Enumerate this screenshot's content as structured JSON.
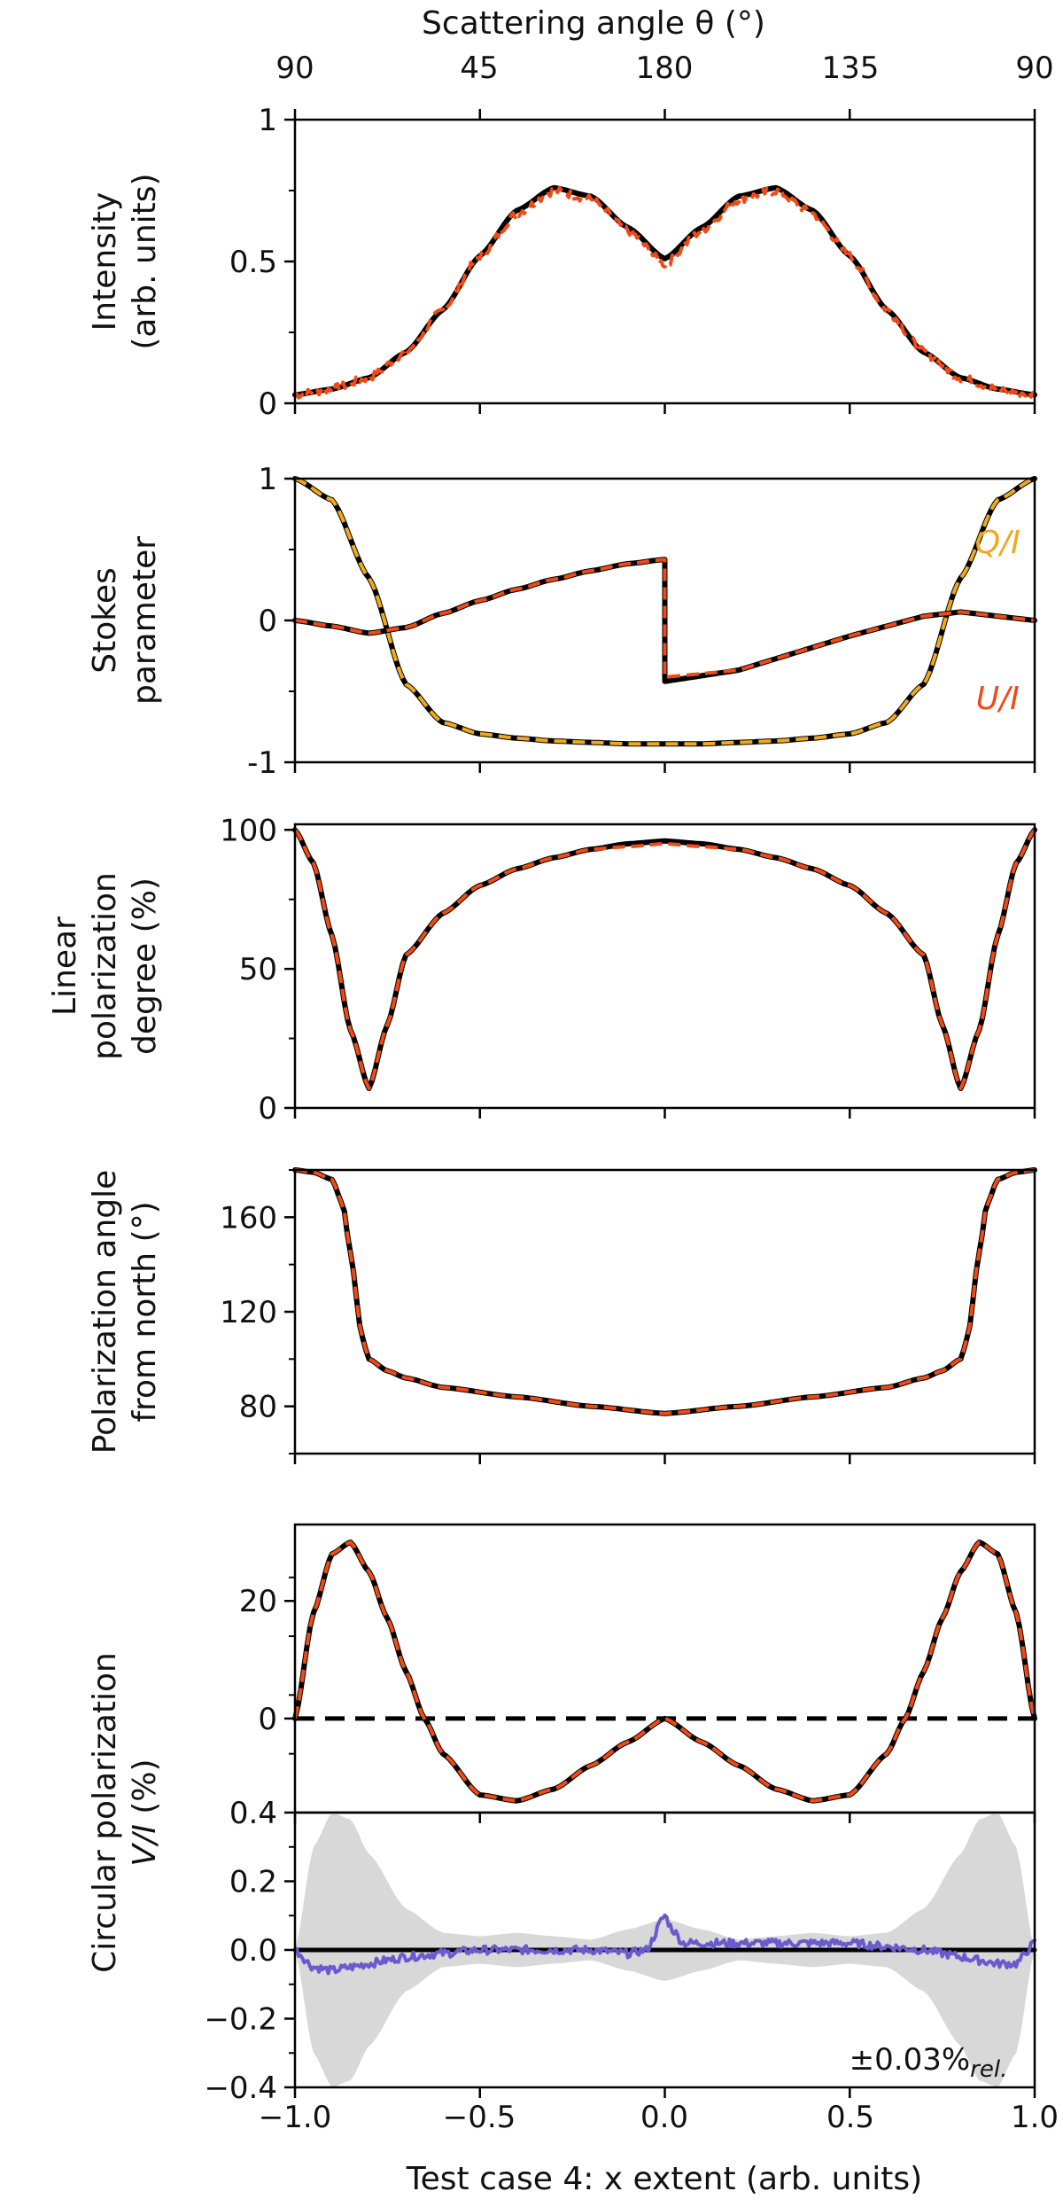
{
  "figure": {
    "top_axis_title": "Scattering angle θ (°)",
    "top_axis_ticks": [
      "90",
      "45",
      "180",
      "135",
      "90"
    ],
    "bottom_axis_title": "Test case 4: x extent (arb. units)",
    "bottom_axis_ticks": [
      "−1.0",
      "−0.5",
      "0.0",
      "0.5",
      "1.0"
    ]
  },
  "colors": {
    "model": "#000000",
    "sim_red": "#f04a16",
    "sim_orange": "#f0a81e",
    "residual": "#6a5acd",
    "band": "#d8d8d8"
  },
  "chart_data": [
    {
      "id": "intensity",
      "type": "line",
      "ylabel_lines": [
        "Intensity",
        "(arb. units)"
      ],
      "ylim": [
        0,
        1
      ],
      "yticks": [
        0,
        0.5,
        1
      ],
      "ytick_labels": [
        "0",
        "0.5",
        "1"
      ],
      "x": [
        -1.0,
        -0.9,
        -0.8,
        -0.7,
        -0.6,
        -0.5,
        -0.4,
        -0.3,
        -0.2,
        -0.1,
        0.0,
        0.1,
        0.2,
        0.3,
        0.4,
        0.5,
        0.6,
        0.7,
        0.8,
        0.9,
        1.0
      ],
      "series": [
        {
          "name": "model",
          "color": "#000000",
          "style": "solid",
          "values": [
            0.03,
            0.05,
            0.09,
            0.18,
            0.33,
            0.52,
            0.68,
            0.76,
            0.73,
            0.62,
            0.51,
            0.62,
            0.73,
            0.76,
            0.68,
            0.52,
            0.33,
            0.18,
            0.09,
            0.05,
            0.03
          ]
        },
        {
          "name": "simulation",
          "color": "#f04a16",
          "style": "dashed",
          "noise": 0.015,
          "values": [
            0.03,
            0.05,
            0.09,
            0.18,
            0.33,
            0.52,
            0.67,
            0.75,
            0.72,
            0.61,
            0.49,
            0.61,
            0.72,
            0.75,
            0.67,
            0.52,
            0.33,
            0.18,
            0.09,
            0.05,
            0.03
          ]
        }
      ]
    },
    {
      "id": "stokes",
      "type": "line",
      "ylabel_lines": [
        "Stokes",
        "parameter"
      ],
      "ylim": [
        -1,
        1
      ],
      "yticks": [
        -1,
        0,
        1
      ],
      "ytick_labels": [
        "-1",
        "0",
        "1"
      ],
      "annotations": [
        {
          "text": "Q/I",
          "color": "#f0a81e",
          "x": 0.9,
          "y": 0.55
        },
        {
          "text": "U/I",
          "color": "#f04a16",
          "x": 0.9,
          "y": -0.55
        }
      ],
      "x": [
        -1.0,
        -0.9,
        -0.8,
        -0.7,
        -0.6,
        -0.5,
        -0.4,
        -0.3,
        -0.2,
        -0.1,
        0.0,
        0.1,
        0.2,
        0.3,
        0.4,
        0.5,
        0.6,
        0.7,
        0.8,
        0.9,
        1.0
      ],
      "series": [
        {
          "name": "Q/I model",
          "color": "#000000",
          "style": "solid",
          "values": [
            1.0,
            0.85,
            0.3,
            -0.45,
            -0.72,
            -0.8,
            -0.83,
            -0.85,
            -0.86,
            -0.87,
            -0.87,
            -0.87,
            -0.86,
            -0.85,
            -0.83,
            -0.8,
            -0.72,
            -0.45,
            0.3,
            0.85,
            1.0
          ]
        },
        {
          "name": "Q/I",
          "color": "#f0a81e",
          "style": "dashed",
          "values": [
            1.0,
            0.85,
            0.3,
            -0.45,
            -0.72,
            -0.8,
            -0.83,
            -0.85,
            -0.86,
            -0.87,
            -0.87,
            -0.87,
            -0.86,
            -0.85,
            -0.83,
            -0.8,
            -0.72,
            -0.45,
            0.3,
            0.85,
            1.0
          ]
        },
        {
          "name": "U/I model",
          "color": "#000000",
          "style": "solid",
          "values": [
            0.0,
            -0.04,
            -0.09,
            -0.05,
            0.05,
            0.14,
            0.22,
            0.29,
            0.35,
            0.4,
            0.43,
            -0.43,
            -0.35,
            -0.27,
            -0.19,
            -0.11,
            -0.04,
            0.03,
            0.06,
            0.03,
            0.0
          ]
        },
        {
          "name": "U/I",
          "color": "#f04a16",
          "style": "dashed",
          "values": [
            0.0,
            -0.04,
            -0.09,
            -0.05,
            0.05,
            0.14,
            0.22,
            0.29,
            0.35,
            0.4,
            0.43,
            -0.4,
            -0.35,
            -0.27,
            -0.19,
            -0.11,
            -0.04,
            0.03,
            0.06,
            0.03,
            0.0
          ]
        }
      ]
    },
    {
      "id": "linear_pol",
      "type": "line",
      "ylabel_lines": [
        "Linear",
        "polarization",
        "degree (%)"
      ],
      "ylim": [
        0,
        102
      ],
      "yticks": [
        0,
        50,
        100
      ],
      "ytick_labels": [
        "0",
        "50",
        "100"
      ],
      "x": [
        -1.0,
        -0.95,
        -0.9,
        -0.85,
        -0.8,
        -0.75,
        -0.7,
        -0.6,
        -0.5,
        -0.4,
        -0.3,
        -0.2,
        -0.1,
        0.0,
        0.1,
        0.2,
        0.3,
        0.4,
        0.5,
        0.6,
        0.7,
        0.75,
        0.8,
        0.85,
        0.9,
        0.95,
        1.0
      ],
      "series": [
        {
          "name": "model",
          "color": "#000000",
          "style": "solid",
          "values": [
            100,
            88,
            62,
            28,
            7,
            30,
            55,
            70,
            80,
            86,
            90,
            93,
            95,
            96,
            95,
            93,
            90,
            86,
            80,
            70,
            55,
            30,
            7,
            28,
            62,
            88,
            100
          ]
        },
        {
          "name": "simulation",
          "color": "#f04a16",
          "style": "dashed",
          "values": [
            100,
            88,
            62,
            28,
            7,
            30,
            55,
            70,
            80,
            86,
            90,
            93,
            94,
            95,
            94,
            93,
            90,
            86,
            80,
            70,
            55,
            30,
            7,
            28,
            62,
            88,
            100
          ]
        }
      ]
    },
    {
      "id": "pol_angle",
      "type": "line",
      "ylabel_lines": [
        "Polarization angle",
        "from north (°)"
      ],
      "ylim": [
        60,
        180
      ],
      "yticks": [
        80,
        120,
        160
      ],
      "ytick_labels": [
        "80",
        "120",
        "160"
      ],
      "x": [
        -1.0,
        -0.95,
        -0.9,
        -0.87,
        -0.85,
        -0.82,
        -0.8,
        -0.75,
        -0.7,
        -0.6,
        -0.4,
        -0.2,
        0.0,
        0.2,
        0.4,
        0.6,
        0.7,
        0.75,
        0.8,
        0.82,
        0.85,
        0.87,
        0.9,
        0.95,
        1.0
      ],
      "series": [
        {
          "name": "model",
          "color": "#000000",
          "style": "solid",
          "values": [
            180,
            179,
            176,
            165,
            145,
            110,
            100,
            95,
            92,
            88,
            84,
            80,
            77,
            80,
            84,
            88,
            92,
            95,
            100,
            110,
            145,
            165,
            176,
            179,
            180
          ]
        },
        {
          "name": "simulation",
          "color": "#f04a16",
          "style": "dashed",
          "values": [
            180,
            179,
            176,
            165,
            145,
            110,
            100,
            95,
            92,
            88,
            84,
            80,
            77,
            80,
            84,
            88,
            92,
            95,
            100,
            110,
            145,
            165,
            176,
            179,
            180
          ]
        }
      ]
    },
    {
      "id": "circular_pol",
      "type": "line",
      "ylabel_lines": [
        "Circular polarization",
        "V/I (%)"
      ],
      "ylim": [
        -16,
        33
      ],
      "yticks": [
        0,
        20
      ],
      "ytick_labels": [
        "0",
        "20"
      ],
      "x": [
        -1.0,
        -0.95,
        -0.9,
        -0.85,
        -0.8,
        -0.75,
        -0.7,
        -0.65,
        -0.6,
        -0.5,
        -0.4,
        -0.3,
        -0.2,
        -0.1,
        0.0,
        0.1,
        0.2,
        0.3,
        0.4,
        0.5,
        0.6,
        0.65,
        0.7,
        0.75,
        0.8,
        0.85,
        0.9,
        0.95,
        1.0
      ],
      "series": [
        {
          "name": "zero reference",
          "color": "#000000",
          "style": "dashed-thick",
          "values": [
            0,
            0,
            0,
            0,
            0,
            0,
            0,
            0,
            0,
            0,
            0,
            0,
            0,
            0,
            0,
            0,
            0,
            0,
            0,
            0,
            0,
            0,
            0,
            0,
            0,
            0,
            0,
            0,
            0
          ]
        },
        {
          "name": "model",
          "color": "#000000",
          "style": "solid",
          "values": [
            0,
            18,
            28,
            30,
            25,
            17,
            8,
            0,
            -6,
            -13,
            -14,
            -12,
            -8,
            -4,
            0,
            -4,
            -8,
            -12,
            -14,
            -13,
            -6,
            0,
            8,
            17,
            25,
            30,
            28,
            18,
            0
          ]
        },
        {
          "name": "simulation",
          "color": "#f04a16",
          "style": "dashed",
          "values": [
            0,
            18,
            28,
            30,
            25,
            17,
            8,
            0,
            -6,
            -13,
            -14,
            -12,
            -8,
            -4,
            0,
            -4,
            -8,
            -12,
            -14,
            -13,
            -6,
            0,
            8,
            17,
            25,
            30,
            28,
            18,
            0
          ]
        }
      ]
    },
    {
      "id": "residual",
      "type": "area",
      "ylim": [
        -0.4,
        0.4
      ],
      "yticks": [
        -0.4,
        -0.2,
        0.0,
        0.2,
        0.4
      ],
      "ytick_labels": [
        "−0.4",
        "−0.2",
        "0.0",
        "0.2",
        "0.4"
      ],
      "annotation": "±0.03%rel.",
      "annotation_main": "±0.03%",
      "annotation_sub": "rel.",
      "band": {
        "x": [
          -1.0,
          -0.95,
          -0.9,
          -0.85,
          -0.8,
          -0.7,
          -0.6,
          -0.5,
          -0.4,
          -0.3,
          -0.2,
          -0.1,
          0.0,
          0.1,
          0.2,
          0.3,
          0.4,
          0.5,
          0.6,
          0.7,
          0.8,
          0.85,
          0.9,
          0.95,
          1.0
        ],
        "upper": [
          0.0,
          0.3,
          0.4,
          0.38,
          0.28,
          0.12,
          0.05,
          0.04,
          0.05,
          0.04,
          0.03,
          0.06,
          0.09,
          0.06,
          0.03,
          0.04,
          0.05,
          0.04,
          0.05,
          0.12,
          0.28,
          0.38,
          0.4,
          0.3,
          0.0
        ]
      },
      "x": [
        -1.0,
        -0.95,
        -0.9,
        -0.85,
        -0.8,
        -0.75,
        -0.7,
        -0.6,
        -0.5,
        -0.4,
        -0.3,
        -0.2,
        -0.1,
        -0.05,
        0.0,
        0.02,
        0.05,
        0.1,
        0.2,
        0.3,
        0.4,
        0.5,
        0.6,
        0.7,
        0.75,
        0.8,
        0.85,
        0.9,
        0.95,
        1.0
      ],
      "series": [
        {
          "name": "zero",
          "color": "#000000",
          "style": "solid-thick",
          "values": [
            0,
            0,
            0,
            0,
            0,
            0,
            0,
            0,
            0,
            0,
            0,
            0,
            0,
            0,
            0,
            0,
            0,
            0,
            0,
            0,
            0,
            0,
            0,
            0,
            0,
            0,
            0,
            0,
            0,
            0
          ]
        },
        {
          "name": "residual",
          "color": "#6a5acd",
          "style": "solid",
          "noise": 0.012,
          "values": [
            0.0,
            -0.05,
            -0.06,
            -0.05,
            -0.04,
            -0.03,
            -0.02,
            -0.01,
            0.0,
            0.0,
            0.0,
            0.0,
            -0.01,
            0.0,
            0.1,
            0.06,
            0.02,
            0.02,
            0.02,
            0.02,
            0.02,
            0.02,
            0.01,
            0.0,
            -0.01,
            -0.02,
            -0.03,
            -0.04,
            -0.04,
            0.02
          ]
        }
      ]
    }
  ]
}
